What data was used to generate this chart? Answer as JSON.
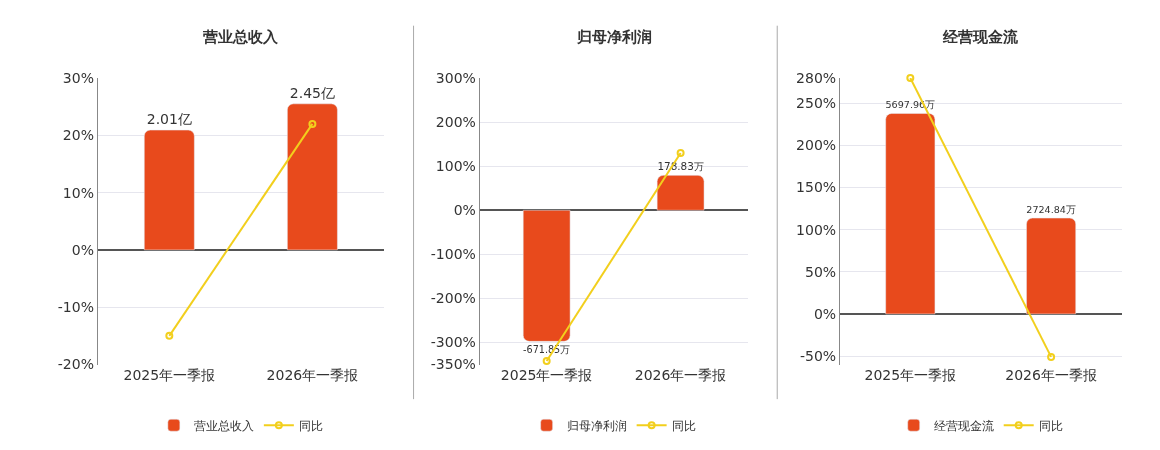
{
  "chart_data": [
    {
      "type": "bar",
      "title": "营业总收入",
      "categories": [
        "2025年一季报",
        "2026年一季报"
      ],
      "ylim": [
        -20,
        30
      ],
      "yticks": [
        {
          "value": -20,
          "label": "-20%"
        },
        {
          "value": -10,
          "label": "-10%"
        },
        {
          "value": 0,
          "label": "0%"
        },
        {
          "value": 10,
          "label": "10%"
        },
        {
          "value": 20,
          "label": "20%"
        },
        {
          "value": 30,
          "label": "30%"
        }
      ],
      "grid": "y",
      "legend": "bottom",
      "series": [
        {
          "name": "营业总收入",
          "axis": "y2",
          "color": "#e84a1c",
          "values": [
            2.01,
            2.45
          ],
          "value_labels": [
            "2.01亿",
            "2.45亿"
          ]
        },
        {
          "name": "同比",
          "type": "line",
          "color": "#f2cf1d",
          "marker": "circle",
          "values": [
            -15,
            22
          ]
        }
      ]
    },
    {
      "type": "bar",
      "title": "归母净利润",
      "categories": [
        "2025年一季报",
        "2026年一季报"
      ],
      "ylim": [
        -350,
        300
      ],
      "yticks": [
        {
          "value": -350,
          "label": "-350%"
        },
        {
          "value": -300,
          "label": "-300%"
        },
        {
          "value": -200,
          "label": "-200%"
        },
        {
          "value": -100,
          "label": "-100%"
        },
        {
          "value": 0,
          "label": "0%"
        },
        {
          "value": 100,
          "label": "100%"
        },
        {
          "value": 200,
          "label": "200%"
        },
        {
          "value": 300,
          "label": "300%"
        }
      ],
      "grid": "y",
      "legend": "bottom",
      "series": [
        {
          "name": "归母净利润",
          "axis": "y2",
          "color": "#e84a1c",
          "values": [
            -671.85,
            178.83
          ],
          "value_labels": [
            "-671.85万",
            "178.83万"
          ]
        },
        {
          "name": "同比",
          "type": "line",
          "color": "#f2cf1d",
          "marker": "circle",
          "values": [
            -342,
            130
          ]
        }
      ]
    },
    {
      "type": "bar",
      "title": "经营现金流",
      "categories": [
        "2025年一季报",
        "2026年一季报"
      ],
      "ylim": [
        -60,
        280
      ],
      "yticks": [
        {
          "value": -50,
          "label": "-50%"
        },
        {
          "value": 0,
          "label": "0%"
        },
        {
          "value": 50,
          "label": "50%"
        },
        {
          "value": 100,
          "label": "100%"
        },
        {
          "value": 150,
          "label": "150%"
        },
        {
          "value": 200,
          "label": "200%"
        },
        {
          "value": 250,
          "label": "250%"
        },
        {
          "value": 280,
          "label": "280%"
        }
      ],
      "grid": "y",
      "legend": "bottom",
      "series": [
        {
          "name": "经营现金流",
          "axis": "y2",
          "color": "#e84a1c",
          "values": [
            5697.96,
            2724.84
          ],
          "value_labels": [
            "5697.96万",
            "2724.84万"
          ]
        },
        {
          "name": "同比",
          "type": "line",
          "color": "#f2cf1d",
          "marker": "circle",
          "values": [
            280,
            -51
          ]
        }
      ]
    }
  ]
}
